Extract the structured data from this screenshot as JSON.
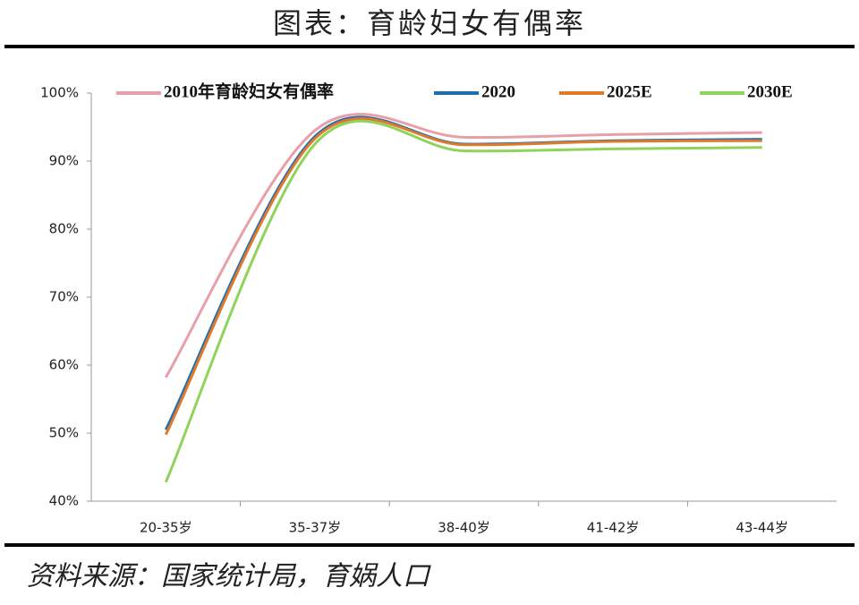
{
  "chart_data": {
    "type": "line",
    "title": "图表：育龄妇女有偶率",
    "source": "资料来源：国家统计局，育娲人口",
    "categories": [
      "20-35岁",
      "35-37岁",
      "38-40岁",
      "41-42岁",
      "43-44岁"
    ],
    "series": [
      {
        "name": "2010年育龄妇女有偶率",
        "color": "#e8a0a8",
        "values": [
          58.2,
          94.5,
          93.5,
          93.9,
          94.2
        ]
      },
      {
        "name": "2020",
        "color": "#1f6fb0",
        "values": [
          50.5,
          93.6,
          92.5,
          93.0,
          93.2
        ]
      },
      {
        "name": "2025E",
        "color": "#e07a2a",
        "values": [
          49.8,
          93.3,
          92.4,
          92.9,
          93.0
        ]
      },
      {
        "name": "2030E",
        "color": "#8fd45a",
        "values": [
          42.8,
          92.5,
          91.5,
          91.8,
          92.0
        ]
      }
    ],
    "ylim": [
      40,
      100
    ],
    "yticks": [
      {
        "value": 40,
        "label": "40%"
      },
      {
        "value": 50,
        "label": "50%"
      },
      {
        "value": 60,
        "label": "60%"
      },
      {
        "value": 70,
        "label": "70%"
      },
      {
        "value": 80,
        "label": "80%"
      },
      {
        "value": 90,
        "label": "90%"
      },
      {
        "value": 100,
        "label": "100%"
      }
    ]
  }
}
